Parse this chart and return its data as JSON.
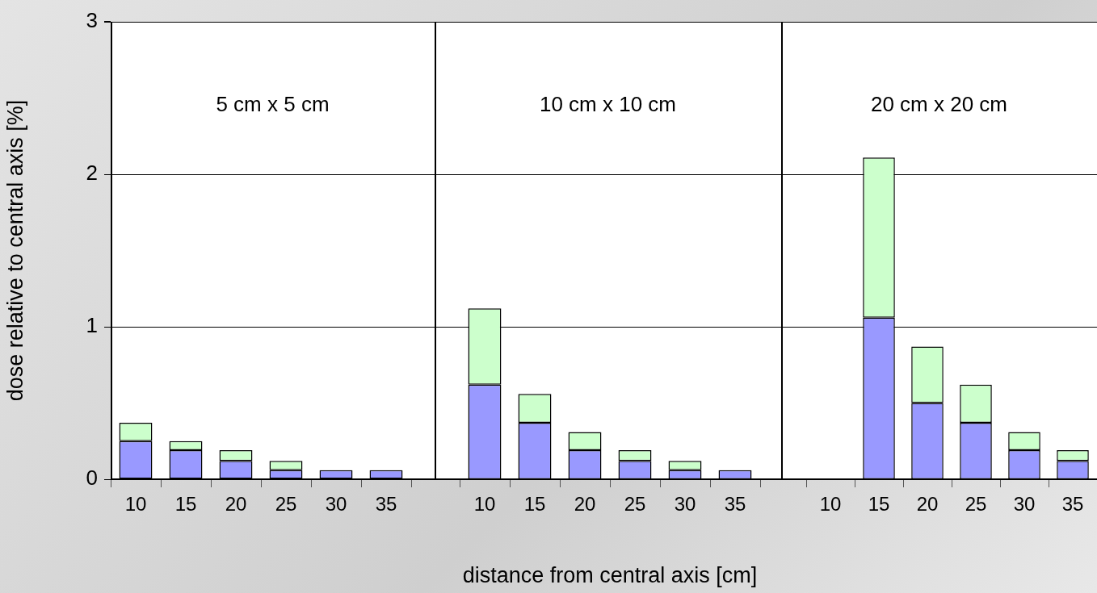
{
  "chart_data": [
    {
      "type": "bar",
      "stacked": true,
      "categories": [
        "10",
        "15",
        "20",
        "25",
        "30",
        "35"
      ],
      "ylabel": "dose relative to central axis [%]",
      "ylim": [
        0,
        3
      ],
      "yticks": [
        0,
        1,
        2,
        3
      ],
      "grid": "y",
      "annotations": [
        "5 cm x 5 cm"
      ],
      "series": [
        {
          "color": "#9999ff",
          "values": [
            0.25,
            0.19,
            0.12,
            0.06,
            0.06,
            0.06
          ]
        },
        {
          "color": "#ccffcc",
          "values": [
            0.12,
            0.06,
            0.07,
            0.06,
            null,
            null
          ]
        }
      ]
    },
    {
      "type": "bar",
      "stacked": true,
      "categories": [
        "10",
        "15",
        "20",
        "25",
        "30",
        "35"
      ],
      "xlabel": "distance from central axis [cm]",
      "ylim": [
        0,
        3
      ],
      "yticks": [
        0,
        1,
        2,
        3
      ],
      "grid": "y",
      "tick_labels": "x",
      "annotations": [
        "10 cm x 10 cm"
      ],
      "series": [
        {
          "color": "#9999ff",
          "values": [
            0.62,
            0.37,
            0.19,
            0.12,
            0.06,
            0.06
          ]
        },
        {
          "color": "#ccffcc",
          "values": [
            0.5,
            0.19,
            0.12,
            0.07,
            0.06,
            null
          ]
        }
      ]
    },
    {
      "type": "bar",
      "stacked": true,
      "categories": [
        "10",
        "15",
        "20",
        "25",
        "30",
        "35"
      ],
      "ylim": [
        0,
        3
      ],
      "yticks": [
        0,
        1,
        2,
        3
      ],
      "grid": "y",
      "tick_labels": "x",
      "annotations": [
        "20 cm x 20 cm"
      ],
      "series": [
        {
          "color": "#9999ff",
          "values": [
            null,
            1.06,
            0.5,
            0.37,
            0.19,
            0.12
          ]
        },
        {
          "color": "#ccffcc",
          "values": [
            null,
            1.05,
            0.37,
            0.25,
            0.12,
            0.07
          ]
        }
      ]
    }
  ]
}
